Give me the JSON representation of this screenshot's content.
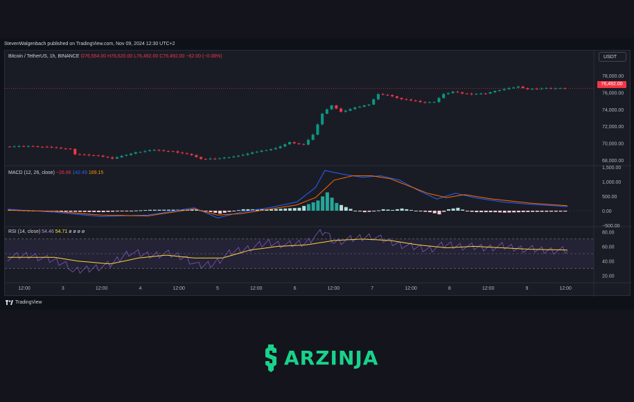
{
  "publisher": "StevenWalgenbach published on TradingView.com, Nov 09, 2024 12:30 UTC+2",
  "legend": {
    "symbol": "Bitcoin / TetherUS, 1h, BINANCE",
    "open": "O76,554.00",
    "high": "H76,620.00",
    "low": "L76,492.00",
    "close": "C76,492.00",
    "change": "−62.00 (−0.08%)"
  },
  "currency_button": "USDT",
  "last_price": "76,492.00",
  "macd_legend": {
    "name": "MACD (12, 26, close)",
    "hist": "−26.66",
    "macd": "142.49",
    "signal": "169.15"
  },
  "rsi_legend": {
    "name": "RSI (14, close)",
    "rsi": "54.46",
    "ma": "54.71",
    "extra": "ø ø ø ø"
  },
  "footer_brand": "TradingView",
  "brand": "ARZINJA",
  "colors": {
    "up": "#089981",
    "down": "#f23645",
    "macd": "#2962ff",
    "signal": "#ff6d00",
    "rsi": "#7e57c2",
    "rsi_ma": "#fdd835",
    "brand": "#19d28c"
  },
  "chart_data": {
    "type": "candlestick",
    "x_ticks": [
      "12:00",
      "3",
      "12:00",
      "4",
      "12:00",
      "5",
      "12:00",
      "6",
      "12:00",
      "7",
      "12:00",
      "8",
      "12:00",
      "9",
      "12:00"
    ],
    "price_axis": {
      "ylim": [
        67500,
        79000
      ],
      "ticks": [
        "68,000.00",
        "70,000.00",
        "72,000.00",
        "74,000.00",
        "76,000.00",
        "78,000.00"
      ]
    },
    "price_path": [
      [
        0,
        69600
      ],
      [
        5,
        69650
      ],
      [
        10,
        69500
      ],
      [
        14,
        69300
      ],
      [
        15,
        68700
      ],
      [
        20,
        68500
      ],
      [
        23,
        68200
      ],
      [
        28,
        68900
      ],
      [
        32,
        69200
      ],
      [
        36,
        69000
      ],
      [
        40,
        68600
      ],
      [
        42,
        68100
      ],
      [
        46,
        68200
      ],
      [
        50,
        68500
      ],
      [
        54,
        69000
      ],
      [
        58,
        69400
      ],
      [
        61,
        70100
      ],
      [
        64,
        69800
      ],
      [
        66,
        71000
      ],
      [
        68,
        73500
      ],
      [
        70,
        74500
      ],
      [
        72,
        73700
      ],
      [
        75,
        74200
      ],
      [
        78,
        74600
      ],
      [
        80,
        75800
      ],
      [
        82,
        75700
      ],
      [
        85,
        75200
      ],
      [
        88,
        75000
      ],
      [
        90,
        74800
      ],
      [
        92,
        74900
      ],
      [
        94,
        75800
      ],
      [
        96,
        76100
      ],
      [
        98,
        75900
      ],
      [
        100,
        75800
      ],
      [
        103,
        75900
      ],
      [
        106,
        76300
      ],
      [
        108,
        76500
      ],
      [
        110,
        76700
      ],
      [
        112,
        76400
      ],
      [
        116,
        76500
      ],
      [
        120,
        76492
      ]
    ],
    "macd_axis": {
      "ylim": [
        -500,
        1500
      ],
      "ticks": [
        "1,500.00",
        "1,000.00",
        "500.00",
        "0.00",
        "−500.00"
      ]
    },
    "macd_line": [
      [
        0,
        50
      ],
      [
        10,
        -50
      ],
      [
        20,
        -200
      ],
      [
        30,
        -150
      ],
      [
        40,
        100
      ],
      [
        45,
        -250
      ],
      [
        50,
        -50
      ],
      [
        56,
        100
      ],
      [
        62,
        300
      ],
      [
        66,
        800
      ],
      [
        68,
        1380
      ],
      [
        72,
        1250
      ],
      [
        76,
        1150
      ],
      [
        80,
        1200
      ],
      [
        84,
        1050
      ],
      [
        88,
        700
      ],
      [
        92,
        400
      ],
      [
        96,
        600
      ],
      [
        100,
        450
      ],
      [
        106,
        300
      ],
      [
        112,
        220
      ],
      [
        120,
        142
      ]
    ],
    "signal_line": [
      [
        0,
        20
      ],
      [
        10,
        -20
      ],
      [
        20,
        -150
      ],
      [
        30,
        -180
      ],
      [
        40,
        60
      ],
      [
        45,
        -150
      ],
      [
        50,
        -100
      ],
      [
        56,
        50
      ],
      [
        62,
        200
      ],
      [
        66,
        450
      ],
      [
        70,
        1050
      ],
      [
        74,
        1200
      ],
      [
        78,
        1200
      ],
      [
        82,
        1100
      ],
      [
        86,
        850
      ],
      [
        90,
        600
      ],
      [
        94,
        450
      ],
      [
        98,
        550
      ],
      [
        104,
        400
      ],
      [
        112,
        260
      ],
      [
        120,
        169
      ]
    ],
    "rsi_axis": {
      "ylim": [
        15,
        85
      ],
      "ticks": [
        "80.00",
        "60.00",
        "40.00",
        "20.00"
      ],
      "bands": [
        30,
        50,
        70
      ]
    },
    "rsi_line": [
      [
        0,
        45
      ],
      [
        5,
        48
      ],
      [
        10,
        40
      ],
      [
        13,
        35
      ],
      [
        14,
        25
      ],
      [
        18,
        30
      ],
      [
        22,
        35
      ],
      [
        26,
        52
      ],
      [
        30,
        48
      ],
      [
        34,
        50
      ],
      [
        38,
        45
      ],
      [
        41,
        33
      ],
      [
        44,
        36
      ],
      [
        48,
        52
      ],
      [
        52,
        58
      ],
      [
        56,
        65
      ],
      [
        60,
        62
      ],
      [
        64,
        65
      ],
      [
        66,
        75
      ],
      [
        68,
        80
      ],
      [
        70,
        66
      ],
      [
        74,
        70
      ],
      [
        78,
        74
      ],
      [
        82,
        66
      ],
      [
        86,
        60
      ],
      [
        90,
        56
      ],
      [
        94,
        62
      ],
      [
        98,
        60
      ],
      [
        102,
        58
      ],
      [
        106,
        60
      ],
      [
        110,
        57
      ],
      [
        114,
        55
      ],
      [
        120,
        54
      ]
    ],
    "rsi_ma_line": [
      [
        0,
        45
      ],
      [
        10,
        45
      ],
      [
        15,
        40
      ],
      [
        22,
        36
      ],
      [
        28,
        44
      ],
      [
        34,
        48
      ],
      [
        40,
        44
      ],
      [
        46,
        44
      ],
      [
        52,
        55
      ],
      [
        58,
        60
      ],
      [
        64,
        62
      ],
      [
        70,
        68
      ],
      [
        76,
        70
      ],
      [
        82,
        68
      ],
      [
        88,
        62
      ],
      [
        94,
        58
      ],
      [
        100,
        60
      ],
      [
        106,
        58
      ],
      [
        112,
        56
      ],
      [
        120,
        55
      ]
    ]
  }
}
